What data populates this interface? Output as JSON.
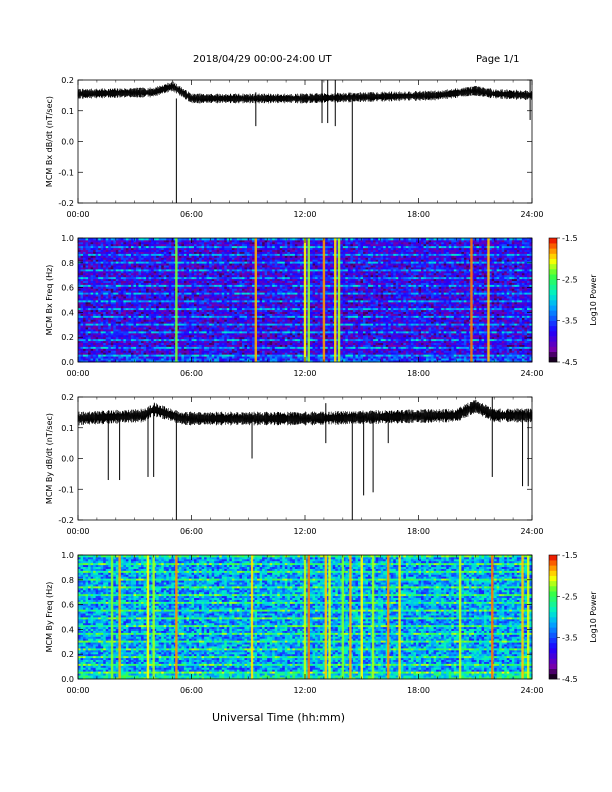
{
  "header": {
    "title": "2018/04/29  00:00-24:00 UT",
    "page": "Page 1/1"
  },
  "footer": {
    "xlabel": "Universal Time (hh:mm)"
  },
  "chart_data": [
    {
      "type": "line",
      "ylabel": "MCM Bx dB/dt (nT/sec)",
      "xlim": [
        "00:00",
        "24:00"
      ],
      "ylim": [
        -0.2,
        0.2
      ],
      "x_ticks": [
        "00:00",
        "06:00",
        "12:00",
        "18:00",
        "24:00"
      ],
      "y_ticks": [
        "-0.2",
        "-0.1",
        "0.0",
        "0.1",
        "0.2"
      ],
      "baseline_profile": {
        "hours": [
          0,
          4,
          5,
          6,
          12,
          19,
          21,
          22,
          24
        ],
        "values": [
          0.155,
          0.16,
          0.18,
          0.14,
          0.14,
          0.15,
          0.165,
          0.155,
          0.15
        ]
      },
      "noise_amplitude": 0.01,
      "spikes": [
        {
          "hour": 5.2,
          "min": -0.2,
          "max": 0.14
        },
        {
          "hour": 9.4,
          "min": 0.05,
          "max": 0.16
        },
        {
          "hour": 12.9,
          "min": 0.06,
          "max": 0.2
        },
        {
          "hour": 13.2,
          "min": 0.06,
          "max": 0.2
        },
        {
          "hour": 13.6,
          "min": 0.05,
          "max": 0.2
        },
        {
          "hour": 14.5,
          "min": -0.2,
          "max": 0.14
        },
        {
          "hour": 23.9,
          "min": 0.07,
          "max": 0.2
        }
      ]
    },
    {
      "type": "heatmap",
      "ylabel": "MCM Bx Freq (Hz)",
      "xlim": [
        "00:00",
        "24:00"
      ],
      "ylim": [
        0.0,
        1.0
      ],
      "x_ticks": [
        "00:00",
        "06:00",
        "12:00",
        "18:00",
        "24:00"
      ],
      "y_ticks": [
        "0.0",
        "0.2",
        "0.4",
        "0.6",
        "0.8",
        "1.0"
      ],
      "colorbar": {
        "label": "Log10 Power",
        "min": -4.5,
        "max": -1.5,
        "ticks": [
          "-1.5",
          "-2.5",
          "-3.5",
          "-4.5"
        ]
      },
      "background_log_power": -3.9,
      "bright_columns_hours": [
        5.2,
        9.4,
        12.0,
        12.2,
        13.0,
        13.6,
        13.8,
        20.8,
        21.7
      ],
      "harmonic_band_spacing_hz": 0.0625
    },
    {
      "type": "line",
      "ylabel": "MCM By dB/dt (nT/sec)",
      "xlim": [
        "00:00",
        "24:00"
      ],
      "ylim": [
        -0.2,
        0.2
      ],
      "x_ticks": [
        "00:00",
        "06:00",
        "12:00",
        "18:00",
        "24:00"
      ],
      "y_ticks": [
        "-0.2",
        "-0.1",
        "0.0",
        "0.1",
        "0.2"
      ],
      "baseline_profile": {
        "hours": [
          0,
          3.5,
          4,
          5.5,
          12,
          20,
          21,
          22,
          24
        ],
        "values": [
          0.13,
          0.14,
          0.16,
          0.13,
          0.13,
          0.14,
          0.17,
          0.14,
          0.14
        ]
      },
      "noise_amplitude": 0.014,
      "spikes": [
        {
          "hour": 1.6,
          "min": -0.07,
          "max": 0.13
        },
        {
          "hour": 2.2,
          "min": -0.07,
          "max": 0.13
        },
        {
          "hour": 3.7,
          "min": -0.06,
          "max": 0.15
        },
        {
          "hour": 4.0,
          "min": -0.06,
          "max": 0.15
        },
        {
          "hour": 5.2,
          "min": -0.2,
          "max": 0.13
        },
        {
          "hour": 9.2,
          "min": 0.0,
          "max": 0.15
        },
        {
          "hour": 13.1,
          "min": 0.05,
          "max": 0.18
        },
        {
          "hour": 14.5,
          "min": -0.2,
          "max": 0.14
        },
        {
          "hour": 15.1,
          "min": -0.12,
          "max": 0.14
        },
        {
          "hour": 15.6,
          "min": -0.11,
          "max": 0.14
        },
        {
          "hour": 16.4,
          "min": 0.05,
          "max": 0.14
        },
        {
          "hour": 21.9,
          "min": -0.06,
          "max": 0.2
        },
        {
          "hour": 23.5,
          "min": -0.09,
          "max": 0.15
        },
        {
          "hour": 23.8,
          "min": -0.09,
          "max": 0.15
        }
      ]
    },
    {
      "type": "heatmap",
      "ylabel": "MCM By Freq (Hz)",
      "xlim": [
        "00:00",
        "24:00"
      ],
      "ylim": [
        0.0,
        1.0
      ],
      "x_ticks": [
        "00:00",
        "06:00",
        "12:00",
        "18:00",
        "24:00"
      ],
      "y_ticks": [
        "0.0",
        "0.2",
        "0.4",
        "0.6",
        "0.8",
        "1.0"
      ],
      "colorbar": {
        "label": "Log10 Power",
        "min": -4.5,
        "max": -1.5,
        "ticks": [
          "-1.5",
          "-2.5",
          "-3.5",
          "-4.5"
        ]
      },
      "background_log_power": -3.2,
      "bright_columns_hours": [
        1.8,
        2.2,
        3.7,
        4.0,
        5.2,
        9.2,
        12.0,
        12.2,
        13.1,
        13.3,
        14.0,
        14.4,
        15.0,
        15.6,
        16.4,
        17.0,
        20.2,
        21.9,
        23.5,
        23.8
      ],
      "harmonic_band_spacing_hz": 0.0625
    }
  ]
}
